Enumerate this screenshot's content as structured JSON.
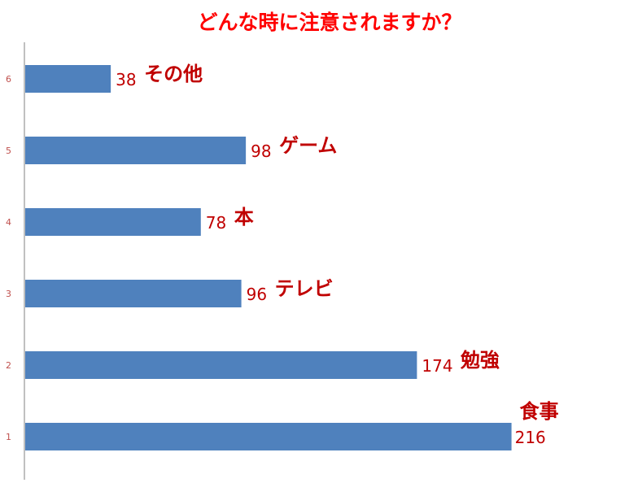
{
  "chart_data": {
    "type": "bar",
    "orientation": "horizontal",
    "title": "どんな時に注意されますか？",
    "categories": [
      "1",
      "2",
      "3",
      "4",
      "5",
      "6"
    ],
    "values": [
      216,
      174,
      96,
      78,
      98,
      38
    ],
    "value_labels": [
      "216",
      "174",
      "96",
      "78",
      "98",
      "38"
    ],
    "data_labels": [
      "食事",
      "勉強",
      "テレビ",
      "本",
      "ゲーム",
      "その他"
    ],
    "xlim": [
      0,
      240
    ],
    "grid": false,
    "legend": "none"
  },
  "colors": {
    "bar": "#4f81bd",
    "title": "#ff0000",
    "labels": "#c00000",
    "ticks": "#c0504d",
    "axis": "#808080"
  }
}
